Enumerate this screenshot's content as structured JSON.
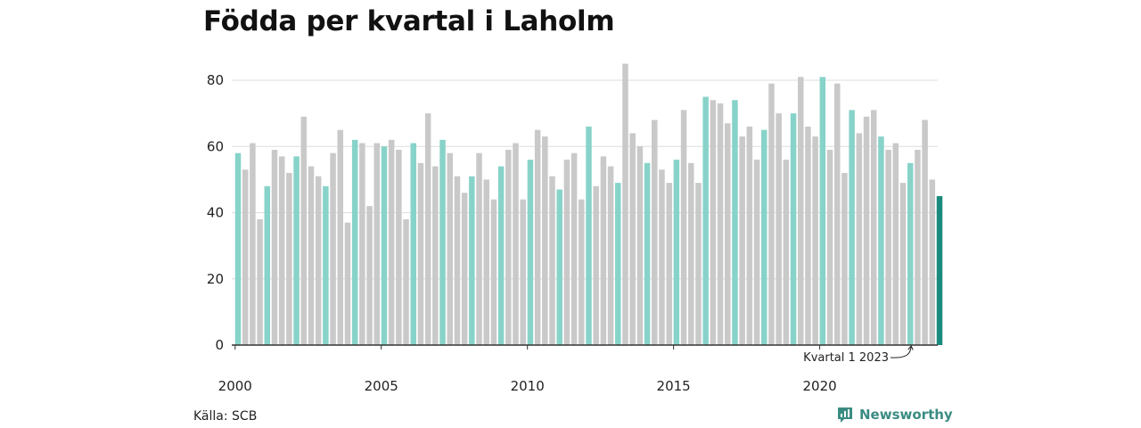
{
  "colors": {
    "highlight": "#88d3c9",
    "base": "#c9c9c9",
    "latest": "#1b8a7e",
    "grid": "#dddddd",
    "axis": "#333333",
    "brand": "#3a8c82"
  },
  "source": "Källa: SCB",
  "brand": {
    "name": "Newsworthy",
    "icon": "newsworthy-logo-icon"
  },
  "chart_data": {
    "type": "bar",
    "title": "Födda per kvartal i Laholm",
    "xlabel": "",
    "ylabel": "",
    "ylim": [
      0,
      85
    ],
    "yticks": [
      0,
      20,
      40,
      60,
      80
    ],
    "grid": true,
    "x_tick_labels": [
      "2000",
      "2005",
      "2010",
      "2015",
      "2020"
    ],
    "annotation": {
      "text": "Kvartal 1 2023",
      "target": "2023 Q1"
    },
    "highlight_rule": "Q1 bars highlighted; latest quarter in dark teal",
    "series": [
      {
        "values": [
          58,
          53,
          61,
          38,
          48,
          59,
          57,
          52,
          57,
          69,
          54,
          51,
          48,
          58,
          65,
          37,
          62,
          61,
          42,
          61,
          60,
          62,
          59,
          38,
          61,
          55,
          70,
          54,
          62,
          58,
          51,
          46,
          51,
          58,
          50,
          44,
          54,
          59,
          61,
          44,
          56,
          65,
          63,
          51,
          47,
          56,
          58,
          44,
          66,
          48,
          57,
          54,
          49,
          85,
          64,
          60,
          55,
          68,
          53,
          49,
          56,
          71,
          55,
          49,
          75,
          74,
          73,
          67,
          74,
          63,
          66,
          56,
          65,
          79,
          70,
          56,
          70,
          81,
          66,
          63,
          81,
          59,
          79,
          52,
          71,
          64,
          69,
          71,
          63,
          59,
          61,
          49,
          55,
          59,
          68,
          50,
          45
        ]
      }
    ]
  }
}
